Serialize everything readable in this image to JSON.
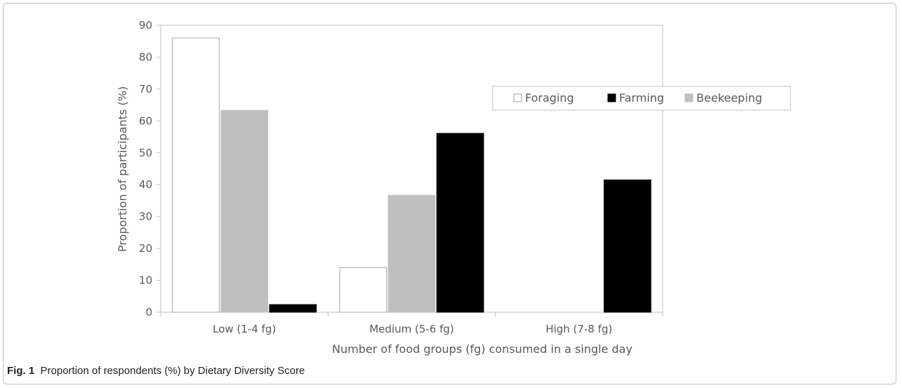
{
  "chart_data": {
    "type": "bar",
    "title": "",
    "categories": [
      "Low (1-4 fg)",
      "Medium (5-6 fg)",
      "High (7-8 fg)"
    ],
    "series": [
      {
        "name": "Foraging",
        "values": [
          86,
          14,
          0
        ],
        "fill": "#ffffff",
        "stroke": "#a6a6a6"
      },
      {
        "name": "Beekeeping",
        "values": [
          63.3,
          36.7,
          0
        ],
        "fill": "#bfbfbf",
        "stroke": "#bfbfbf"
      },
      {
        "name": "Farming",
        "values": [
          2.4,
          56.1,
          41.5
        ],
        "fill": "#000000",
        "stroke": "#000000"
      }
    ],
    "legend_order": [
      "Foraging",
      "Farming",
      "Beekeeping"
    ],
    "xlabel": "Number of food groups (fg) consumed in a single day",
    "ylabel": "Proportion of participants (%)",
    "ylim": [
      0,
      90
    ],
    "yticks": [
      0,
      10,
      20,
      30,
      40,
      50,
      60,
      70,
      80,
      90
    ],
    "grid": false,
    "legend_position": "upper-right"
  },
  "caption": {
    "label": "Fig. 1",
    "text": "Proportion of respondents (%) by Dietary Diversity Score"
  }
}
